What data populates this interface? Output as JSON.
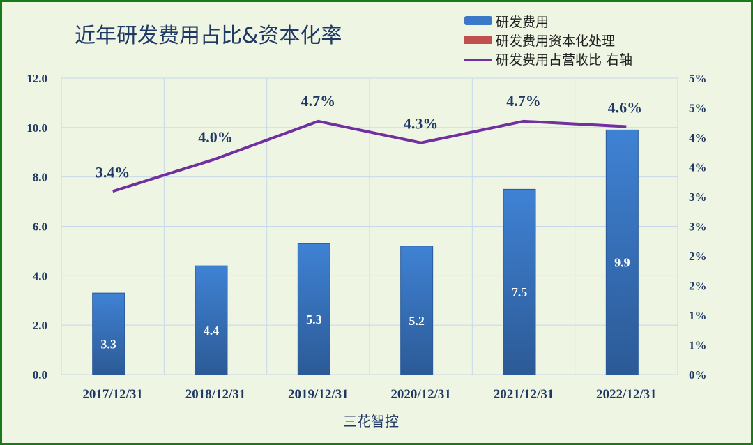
{
  "chart_data": {
    "type": "bar",
    "title": "近年研发费用占比&资本化率",
    "xlabel": "三花智控",
    "categories": [
      "2017/12/31",
      "2018/12/31",
      "2019/12/31",
      "2020/12/31",
      "2021/12/31",
      "2022/12/31"
    ],
    "series": [
      {
        "name": "研发费用",
        "type": "bar",
        "axis": "left",
        "values": [
          3.3,
          4.4,
          5.3,
          5.2,
          7.5,
          9.9
        ],
        "labels": [
          "3.3",
          "4.4",
          "5.3",
          "5.2",
          "7.5",
          "9.9"
        ],
        "color": "#3a78c9"
      },
      {
        "name": "研发费用资本化处理",
        "type": "bar",
        "axis": "left",
        "values": [
          0,
          0,
          0,
          0,
          0,
          0
        ],
        "color": "#c0504d"
      },
      {
        "name": "研发费用占营收比 右轴",
        "type": "line",
        "axis": "right",
        "values": [
          3.4,
          4.0,
          4.7,
          4.3,
          4.7,
          4.6
        ],
        "labels": [
          "3.4%",
          "4.0%",
          "4.7%",
          "4.3%",
          "4.7%",
          "4.6%"
        ],
        "color": "#7030a0"
      }
    ],
    "y_left": {
      "ylim": [
        0,
        12
      ],
      "ticks": [
        "0.0",
        "2.0",
        "4.0",
        "6.0",
        "8.0",
        "10.0",
        "12.0"
      ]
    },
    "y_right": {
      "ylim": [
        0,
        5.5
      ],
      "ticks": [
        "0%",
        "1%",
        "1%",
        "2%",
        "2%",
        "3%",
        "3%",
        "4%",
        "4%",
        "5%",
        "5%"
      ]
    },
    "grid": true,
    "legend_position": "top-right"
  }
}
